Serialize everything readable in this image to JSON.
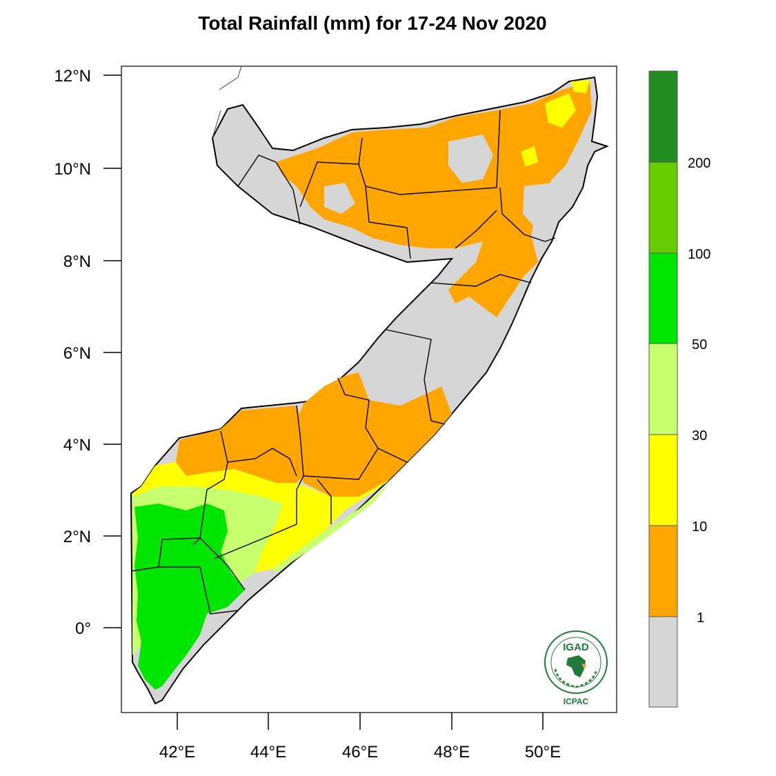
{
  "title": "Total Rainfall (mm) for 17-24 Nov 2020",
  "axes": {
    "lat_ticks": [
      "12°N",
      "10°N",
      "8°N",
      "6°N",
      "4°N",
      "2°N",
      "0°"
    ],
    "lon_ticks": [
      "42°E",
      "44°E",
      "46°E",
      "48°E",
      "50°E"
    ]
  },
  "colorbar": {
    "labels": [
      "1",
      "10",
      "30",
      "50",
      "100",
      "200"
    ],
    "colors": [
      "#d6d6d6",
      "#ffa500",
      "#ffff00",
      "#c8ff6e",
      "#00e600",
      "#66cc00",
      "#228b22"
    ]
  },
  "logo": {
    "top_text": "IGAD",
    "bottom_text": "ICPAC"
  }
}
